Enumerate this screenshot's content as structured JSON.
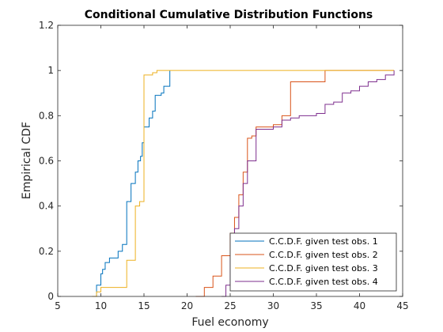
{
  "chart_data": {
    "type": "line",
    "title": "Conditional Cumulative Distribution Functions",
    "xlabel": "Fuel economy",
    "ylabel": "Empirical CDF",
    "xlim": [
      5,
      45
    ],
    "ylim": [
      0,
      1.2
    ],
    "xticks": [
      5,
      10,
      15,
      20,
      25,
      30,
      35,
      40,
      45
    ],
    "yticks": [
      0,
      0.2,
      0.4,
      0.6,
      0.8,
      1,
      1.2
    ],
    "xtick_labels": [
      "5",
      "10",
      "15",
      "20",
      "25",
      "30",
      "35",
      "40",
      "45"
    ],
    "ytick_labels": [
      "0",
      "0.2",
      "0.4",
      "0.6",
      "0.8",
      "1",
      "1.2"
    ],
    "grid": false,
    "legend_position": "bottom-right",
    "step": true,
    "series": [
      {
        "name": "C.C.D.F. given test obs. 1",
        "color": "#0072BD",
        "x": [
          9,
          9.5,
          10,
          10.2,
          10.5,
          11,
          12,
          12.5,
          13,
          13.5,
          14,
          14.3,
          14.6,
          14.8,
          15,
          15.6,
          16,
          16.3,
          17,
          17.3,
          18
        ],
        "y": [
          0,
          0.05,
          0.1,
          0.12,
          0.15,
          0.17,
          0.2,
          0.23,
          0.42,
          0.5,
          0.55,
          0.6,
          0.62,
          0.68,
          0.75,
          0.79,
          0.82,
          0.89,
          0.9,
          0.93,
          1
        ]
      },
      {
        "name": "C.C.D.F. given test obs. 2",
        "color": "#D95319",
        "x": [
          21,
          22,
          23,
          24,
          25,
          25.5,
          26,
          26.5,
          27,
          27.5,
          28,
          29,
          30,
          31,
          32,
          33,
          34,
          35,
          36,
          44
        ],
        "y": [
          0,
          0.04,
          0.09,
          0.18,
          0.28,
          0.35,
          0.45,
          0.55,
          0.7,
          0.71,
          0.75,
          0.75,
          0.76,
          0.8,
          0.95,
          0.95,
          0.95,
          0.95,
          1,
          1
        ]
      },
      {
        "name": "C.C.D.F. given test obs. 3",
        "color": "#EDB120",
        "x": [
          9,
          9.5,
          10,
          11,
          12,
          13,
          14,
          14.5,
          15,
          16,
          16.5,
          44
        ],
        "y": [
          0,
          0.02,
          0.04,
          0.04,
          0.04,
          0.16,
          0.4,
          0.42,
          0.98,
          0.99,
          1,
          1
        ]
      },
      {
        "name": "C.C.D.F. given test obs. 4",
        "color": "#7E2F8E",
        "x": [
          24,
          24.5,
          25,
          25.5,
          26,
          26.5,
          27,
          28,
          30,
          31,
          32,
          33,
          34,
          35,
          36,
          37,
          38,
          39,
          40,
          41,
          42,
          43,
          44
        ],
        "y": [
          0,
          0.05,
          0.18,
          0.3,
          0.4,
          0.5,
          0.6,
          0.74,
          0.75,
          0.78,
          0.79,
          0.8,
          0.8,
          0.81,
          0.85,
          0.86,
          0.9,
          0.91,
          0.93,
          0.95,
          0.96,
          0.98,
          1
        ]
      }
    ]
  }
}
